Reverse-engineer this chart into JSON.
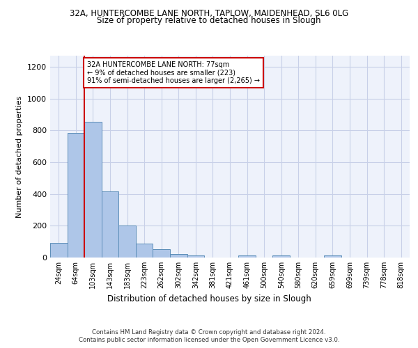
{
  "title_line1": "32A, HUNTERCOMBE LANE NORTH, TAPLOW, MAIDENHEAD, SL6 0LG",
  "title_line2": "Size of property relative to detached houses in Slough",
  "xlabel": "Distribution of detached houses by size in Slough",
  "ylabel": "Number of detached properties",
  "categories": [
    "24sqm",
    "64sqm",
    "103sqm",
    "143sqm",
    "183sqm",
    "223sqm",
    "262sqm",
    "302sqm",
    "342sqm",
    "381sqm",
    "421sqm",
    "461sqm",
    "500sqm",
    "540sqm",
    "580sqm",
    "620sqm",
    "659sqm",
    "699sqm",
    "739sqm",
    "778sqm",
    "818sqm"
  ],
  "values": [
    90,
    785,
    855,
    415,
    200,
    88,
    52,
    23,
    15,
    0,
    0,
    13,
    0,
    13,
    0,
    0,
    13,
    0,
    0,
    0,
    0
  ],
  "bar_color": "#aec6e8",
  "bar_edge_color": "#5b8db8",
  "annotation_text": "32A HUNTERCOMBE LANE NORTH: 77sqm\n← 9% of detached houses are smaller (223)\n91% of semi-detached houses are larger (2,265) →",
  "annotation_box_color": "#ffffff",
  "annotation_border_color": "#cc0000",
  "vline_color": "#cc0000",
  "vline_x_index": 1.5,
  "ylim": [
    0,
    1270
  ],
  "yticks": [
    0,
    200,
    400,
    600,
    800,
    1000,
    1200
  ],
  "footer_line1": "Contains HM Land Registry data © Crown copyright and database right 2024.",
  "footer_line2": "Contains public sector information licensed under the Open Government Licence v3.0.",
  "bg_color": "#eef2fb",
  "grid_color": "#c8d0e8"
}
